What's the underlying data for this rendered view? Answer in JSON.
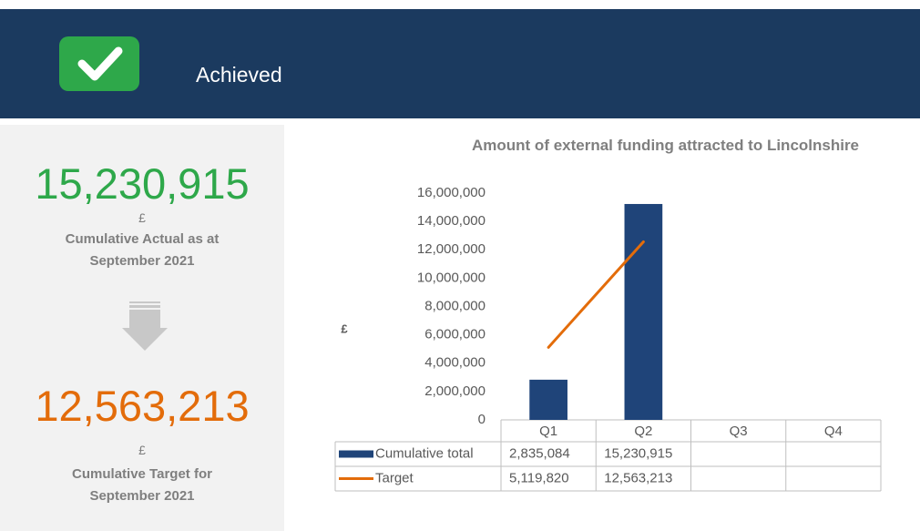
{
  "header": {
    "status": "Achieved"
  },
  "summary": {
    "actual": {
      "value": "15,230,915",
      "unit": "£",
      "label": "Cumulative Actual as at September 2021"
    },
    "target": {
      "value": "12,563,213",
      "unit": "£",
      "label": "Cumulative Target for September 2021"
    }
  },
  "chart_data": {
    "type": "bar",
    "title": "Amount of external funding attracted to Lincolnshire",
    "y_label": "£",
    "categories": [
      "Q1",
      "Q2",
      "Q3",
      "Q4"
    ],
    "series": [
      {
        "name": "Cumulative total",
        "type": "bar",
        "color": "#1f4479",
        "values": [
          2835084,
          15230915,
          null,
          null
        ],
        "value_labels": [
          "2,835,084",
          "15,230,915",
          null,
          null
        ]
      },
      {
        "name": "Target",
        "type": "line",
        "color": "#e36c0a",
        "values": [
          5119820,
          12563213,
          null,
          null
        ],
        "value_labels": [
          "5,119,820",
          "12,563,213",
          null,
          null
        ]
      }
    ],
    "ylim": [
      0,
      16000000
    ],
    "yticks": [
      0,
      {
        "value": 2000000,
        "label": "2,000,000"
      },
      {
        "value": 4000000,
        "label": "4,000,000"
      },
      {
        "value": 6000000,
        "label": "6,000,000"
      },
      {
        "value": 8000000,
        "label": "8,000,000"
      },
      {
        "value": 10000000,
        "label": "10,000,000"
      },
      {
        "value": 12000000,
        "label": "12,000,000"
      },
      {
        "value": 14000000,
        "label": "14,000,000"
      },
      {
        "value": 16000000,
        "label": "16,000,000"
      }
    ],
    "data_table": true
  }
}
